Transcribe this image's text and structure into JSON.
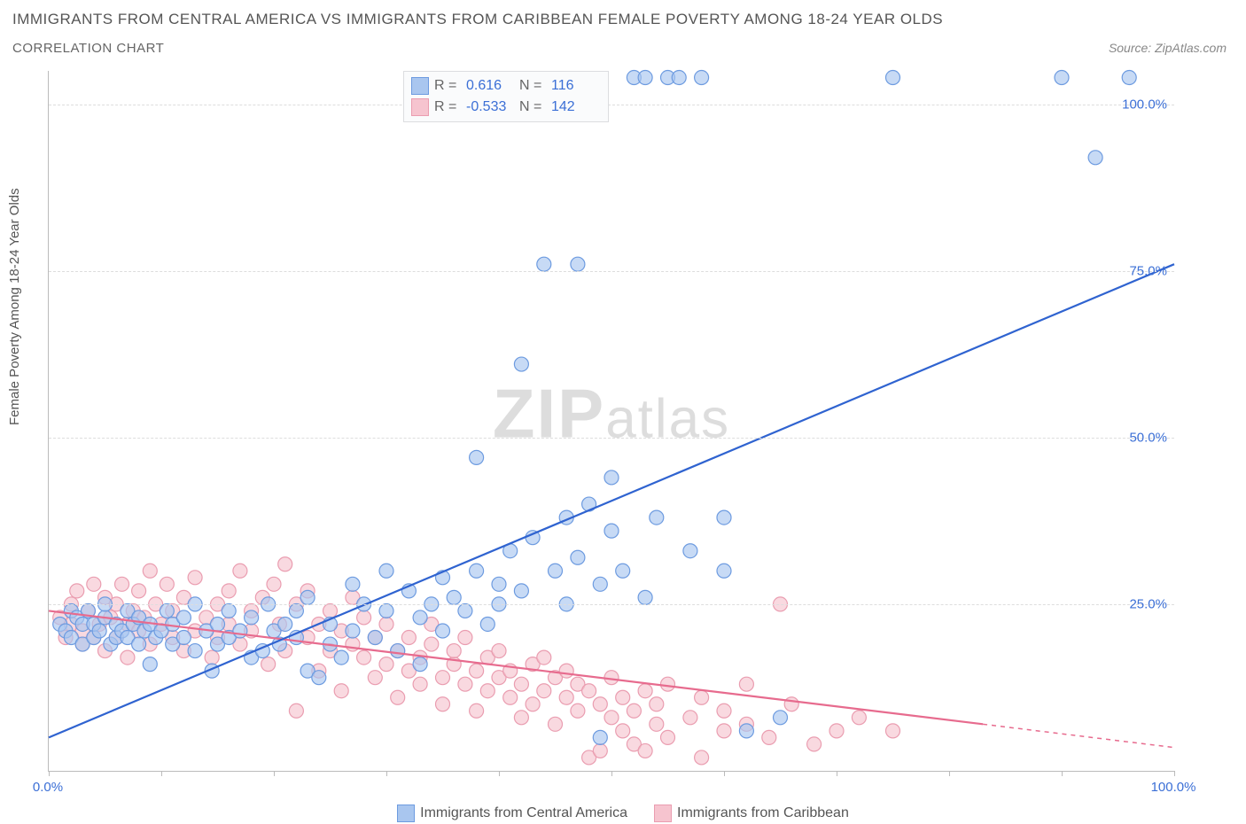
{
  "title": "IMMIGRANTS FROM CENTRAL AMERICA VS IMMIGRANTS FROM CARIBBEAN FEMALE POVERTY AMONG 18-24 YEAR OLDS",
  "subtitle": "CORRELATION CHART",
  "source": "Source: ZipAtlas.com",
  "y_axis_label": "Female Poverty Among 18-24 Year Olds",
  "watermark_main": "ZIP",
  "watermark_rest": "atlas",
  "chart": {
    "type": "scatter",
    "xlim": [
      0,
      100
    ],
    "ylim": [
      0,
      105
    ],
    "x_ticks": [
      0,
      10,
      20,
      30,
      40,
      50,
      60,
      70,
      80,
      90,
      100
    ],
    "x_tick_labels": {
      "0": "0.0%",
      "100": "100.0%"
    },
    "y_ticks": [
      25,
      50,
      75,
      100
    ],
    "y_tick_labels": [
      "25.0%",
      "50.0%",
      "75.0%",
      "100.0%"
    ],
    "grid_color": "#dddddd",
    "background_color": "#ffffff",
    "marker_radius": 8,
    "marker_stroke_width": 1.2,
    "line_width": 2.2
  },
  "series": [
    {
      "name": "Immigrants from Central America",
      "color_fill": "#a9c6ef",
      "color_stroke": "#6d9be0",
      "line_color": "#2f63d0",
      "r_label": "R =",
      "r_value": "0.616",
      "n_label": "N =",
      "n_value": "116",
      "trend": {
        "x1": 0,
        "y1": 5,
        "x2": 100,
        "y2": 76
      },
      "points": [
        [
          1,
          22
        ],
        [
          1.5,
          21
        ],
        [
          2,
          20
        ],
        [
          2,
          24
        ],
        [
          2.5,
          23
        ],
        [
          3,
          22
        ],
        [
          3,
          19
        ],
        [
          3.5,
          24
        ],
        [
          4,
          20
        ],
        [
          4,
          22
        ],
        [
          4.5,
          21
        ],
        [
          5,
          23
        ],
        [
          5,
          25
        ],
        [
          5.5,
          19
        ],
        [
          6,
          20
        ],
        [
          6,
          22
        ],
        [
          6.5,
          21
        ],
        [
          7,
          24
        ],
        [
          7,
          20
        ],
        [
          7.5,
          22
        ],
        [
          8,
          23
        ],
        [
          8,
          19
        ],
        [
          8.5,
          21
        ],
        [
          9,
          22
        ],
        [
          9,
          16
        ],
        [
          9.5,
          20
        ],
        [
          10,
          21
        ],
        [
          10.5,
          24
        ],
        [
          11,
          22
        ],
        [
          11,
          19
        ],
        [
          12,
          23
        ],
        [
          12,
          20
        ],
        [
          13,
          25
        ],
        [
          13,
          18
        ],
        [
          14,
          21
        ],
        [
          14.5,
          15
        ],
        [
          15,
          22
        ],
        [
          15,
          19
        ],
        [
          16,
          20
        ],
        [
          16,
          24
        ],
        [
          17,
          21
        ],
        [
          18,
          23
        ],
        [
          18,
          17
        ],
        [
          19,
          18
        ],
        [
          19.5,
          25
        ],
        [
          20,
          21
        ],
        [
          20.5,
          19
        ],
        [
          21,
          22
        ],
        [
          22,
          20
        ],
        [
          22,
          24
        ],
        [
          23,
          26
        ],
        [
          23,
          15
        ],
        [
          24,
          14
        ],
        [
          25,
          19
        ],
        [
          25,
          22
        ],
        [
          26,
          17
        ],
        [
          27,
          21
        ],
        [
          27,
          28
        ],
        [
          28,
          25
        ],
        [
          29,
          20
        ],
        [
          30,
          24
        ],
        [
          30,
          30
        ],
        [
          31,
          18
        ],
        [
          32,
          27
        ],
        [
          33,
          23
        ],
        [
          33,
          16
        ],
        [
          34,
          25
        ],
        [
          35,
          29
        ],
        [
          35,
          21
        ],
        [
          36,
          26
        ],
        [
          37,
          24
        ],
        [
          38,
          30
        ],
        [
          38,
          47
        ],
        [
          39,
          22
        ],
        [
          40,
          28
        ],
        [
          40,
          25
        ],
        [
          41,
          33
        ],
        [
          42,
          27
        ],
        [
          42,
          61
        ],
        [
          43,
          35
        ],
        [
          44,
          76
        ],
        [
          45,
          30
        ],
        [
          46,
          38
        ],
        [
          46,
          25
        ],
        [
          47,
          32
        ],
        [
          47,
          76
        ],
        [
          48,
          40
        ],
        [
          49,
          5
        ],
        [
          49,
          28
        ],
        [
          50,
          36
        ],
        [
          50,
          44
        ],
        [
          51,
          30
        ],
        [
          52,
          104
        ],
        [
          53,
          104
        ],
        [
          53,
          26
        ],
        [
          54,
          38
        ],
        [
          55,
          104
        ],
        [
          56,
          104
        ],
        [
          57,
          33
        ],
        [
          58,
          104
        ],
        [
          60,
          30
        ],
        [
          60,
          38
        ],
        [
          62,
          6
        ],
        [
          65,
          8
        ],
        [
          75,
          104
        ],
        [
          90,
          104
        ],
        [
          93,
          92
        ],
        [
          96,
          104
        ]
      ]
    },
    {
      "name": "Immigrants from Caribbean",
      "color_fill": "#f6c4cf",
      "color_stroke": "#ea9db0",
      "line_color": "#e76b8e",
      "r_label": "R =",
      "r_value": "-0.533",
      "n_label": "N =",
      "n_value": "142",
      "trend": {
        "x1": 0,
        "y1": 24,
        "x2": 83,
        "y2": 7
      },
      "trend_dashed_ext": {
        "x1": 83,
        "y1": 7,
        "x2": 100,
        "y2": 3.5
      },
      "points": [
        [
          1,
          23
        ],
        [
          1.5,
          20
        ],
        [
          2,
          22
        ],
        [
          2,
          25
        ],
        [
          2.5,
          27
        ],
        [
          3,
          19
        ],
        [
          3,
          21
        ],
        [
          3.5,
          24
        ],
        [
          4,
          28
        ],
        [
          4,
          20
        ],
        [
          4.5,
          22
        ],
        [
          5,
          26
        ],
        [
          5,
          18
        ],
        [
          5.5,
          23
        ],
        [
          6,
          25
        ],
        [
          6,
          20
        ],
        [
          6.5,
          28
        ],
        [
          7,
          22
        ],
        [
          7,
          17
        ],
        [
          7.5,
          24
        ],
        [
          8,
          21
        ],
        [
          8,
          27
        ],
        [
          8.5,
          23
        ],
        [
          9,
          19
        ],
        [
          9,
          30
        ],
        [
          9.5,
          25
        ],
        [
          10,
          22
        ],
        [
          10.5,
          28
        ],
        [
          11,
          20
        ],
        [
          11,
          24
        ],
        [
          12,
          26
        ],
        [
          12,
          18
        ],
        [
          13,
          21
        ],
        [
          13,
          29
        ],
        [
          14,
          23
        ],
        [
          14.5,
          17
        ],
        [
          15,
          25
        ],
        [
          15,
          20
        ],
        [
          16,
          27
        ],
        [
          16,
          22
        ],
        [
          17,
          19
        ],
        [
          17,
          30
        ],
        [
          18,
          24
        ],
        [
          18,
          21
        ],
        [
          19,
          26
        ],
        [
          19.5,
          16
        ],
        [
          20,
          28
        ],
        [
          20.5,
          22
        ],
        [
          21,
          18
        ],
        [
          21,
          31
        ],
        [
          22,
          9
        ],
        [
          22,
          25
        ],
        [
          23,
          20
        ],
        [
          23,
          27
        ],
        [
          24,
          15
        ],
        [
          24,
          22
        ],
        [
          25,
          18
        ],
        [
          25,
          24
        ],
        [
          26,
          21
        ],
        [
          26,
          12
        ],
        [
          27,
          19
        ],
        [
          27,
          26
        ],
        [
          28,
          17
        ],
        [
          28,
          23
        ],
        [
          29,
          14
        ],
        [
          29,
          20
        ],
        [
          30,
          16
        ],
        [
          30,
          22
        ],
        [
          31,
          18
        ],
        [
          31,
          11
        ],
        [
          32,
          15
        ],
        [
          32,
          20
        ],
        [
          33,
          17
        ],
        [
          33,
          13
        ],
        [
          34,
          19
        ],
        [
          34,
          22
        ],
        [
          35,
          14
        ],
        [
          35,
          10
        ],
        [
          36,
          16
        ],
        [
          36,
          18
        ],
        [
          37,
          13
        ],
        [
          37,
          20
        ],
        [
          38,
          15
        ],
        [
          38,
          9
        ],
        [
          39,
          17
        ],
        [
          39,
          12
        ],
        [
          40,
          14
        ],
        [
          40,
          18
        ],
        [
          41,
          11
        ],
        [
          41,
          15
        ],
        [
          42,
          13
        ],
        [
          42,
          8
        ],
        [
          43,
          16
        ],
        [
          43,
          10
        ],
        [
          44,
          12
        ],
        [
          44,
          17
        ],
        [
          45,
          14
        ],
        [
          45,
          7
        ],
        [
          46,
          11
        ],
        [
          46,
          15
        ],
        [
          47,
          9
        ],
        [
          47,
          13
        ],
        [
          48,
          2
        ],
        [
          48,
          12
        ],
        [
          49,
          3
        ],
        [
          49,
          10
        ],
        [
          50,
          8
        ],
        [
          50,
          14
        ],
        [
          51,
          6
        ],
        [
          51,
          11
        ],
        [
          52,
          4
        ],
        [
          52,
          9
        ],
        [
          53,
          12
        ],
        [
          53,
          3
        ],
        [
          54,
          7
        ],
        [
          54,
          10
        ],
        [
          55,
          5
        ],
        [
          55,
          13
        ],
        [
          57,
          8
        ],
        [
          58,
          11
        ],
        [
          58,
          2
        ],
        [
          60,
          9
        ],
        [
          60,
          6
        ],
        [
          62,
          7
        ],
        [
          62,
          13
        ],
        [
          64,
          5
        ],
        [
          65,
          25
        ],
        [
          66,
          10
        ],
        [
          68,
          4
        ],
        [
          70,
          6
        ],
        [
          72,
          8
        ],
        [
          75,
          6
        ]
      ]
    }
  ],
  "bottom_legend": [
    {
      "swatch_fill": "#a9c6ef",
      "swatch_stroke": "#6d9be0",
      "text": "Immigrants from Central America"
    },
    {
      "swatch_fill": "#f6c4cf",
      "swatch_stroke": "#ea9db0",
      "text": "Immigrants from Caribbean"
    }
  ]
}
